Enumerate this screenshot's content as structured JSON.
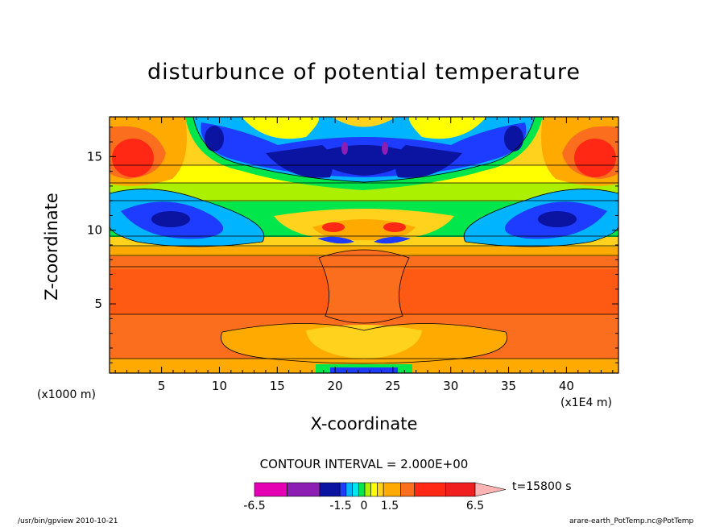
{
  "chart_data": {
    "type": "heatmap",
    "title": "disturbunce of potential temperature",
    "xlabel": "X-coordinate",
    "ylabel": "Z-coordinate",
    "x_unit_note": "(x1000 m)",
    "x_scale_note": "(x1E4 m)",
    "xlim": [
      0.5,
      44.5
    ],
    "ylim": [
      0.3,
      17.7
    ],
    "xticks": [
      5,
      10,
      15,
      20,
      25,
      30,
      35,
      40
    ],
    "yticks": [
      5,
      10,
      15
    ],
    "contour_interval_label": "CONTOUR INTERVAL = 2.000E+00",
    "time_label": "t=15800 s",
    "colorbar": {
      "colors": [
        "#e600b4",
        "#8c1eb4",
        "#0a14a0",
        "#1e3cff",
        "#00b4ff",
        "#00e6f0",
        "#00e64b",
        "#aaf000",
        "#ffff00",
        "#ffd21e",
        "#ffaa00",
        "#fa6e1e",
        "#ff2814",
        "#f01e1e",
        "#ff7878",
        "#ffb4b4"
      ],
      "tick_labels": [
        "-6.5",
        "-1.5",
        "0",
        "1.5",
        "6.5"
      ],
      "tick_values": [
        -6.5,
        -1.5,
        0,
        1.5,
        6.5
      ]
    }
  },
  "footer": {
    "left": "/usr/bin/gpview  2010-10-21",
    "right": "arare-earth_PotTemp.nc@PotTemp"
  }
}
